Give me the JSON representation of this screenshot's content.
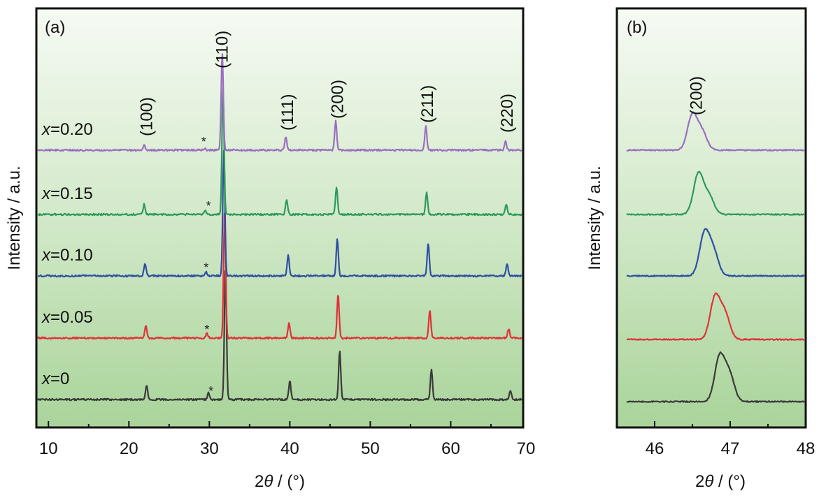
{
  "chart_data": [
    {
      "panel": "(a)",
      "type": "line",
      "xlabel_prefix": "2",
      "xlabel_symbol": "θ",
      "xlabel_suffix": " / (°)",
      "ylabel": "Intensity / a.u.",
      "xlim": [
        8.5,
        69
      ],
      "xticks": [
        10,
        20,
        30,
        40,
        50,
        60,
        70
      ],
      "peak_labels": [
        {
          "text": "(100)",
          "x": 22.2
        },
        {
          "text": "(110)",
          "x": 31.6
        },
        {
          "text": "(111)",
          "x": 39.7
        },
        {
          "text": "(200)",
          "x": 45.9
        },
        {
          "text": "(211)",
          "x": 57.1
        },
        {
          "text": "(220)",
          "x": 67.0
        }
      ],
      "series": [
        {
          "name": "x=0",
          "var": "x",
          "eq": "=0",
          "color": "#3a3a3a",
          "peaks": [
            [
              22.2,
              0.11
            ],
            [
              29.9,
              0.05
            ],
            [
              32.0,
              1.0
            ],
            [
              40.0,
              0.14
            ],
            [
              46.2,
              0.37
            ],
            [
              57.6,
              0.23
            ],
            [
              67.4,
              0.07
            ]
          ],
          "star_x": 30.2
        },
        {
          "name": "x=0.05",
          "var": "x",
          "eq": "=0.05",
          "color": "#e0323a",
          "peaks": [
            [
              22.1,
              0.1
            ],
            [
              29.7,
              0.04
            ],
            [
              31.9,
              1.0
            ],
            [
              39.9,
              0.12
            ],
            [
              46.0,
              0.35
            ],
            [
              57.4,
              0.22
            ],
            [
              67.2,
              0.07
            ]
          ],
          "star_x": 29.7
        },
        {
          "name": "x=0.10",
          "var": "x",
          "eq": "=0.10",
          "color": "#2f4fa5",
          "peaks": [
            [
              22.0,
              0.1
            ],
            [
              29.6,
              0.03
            ],
            [
              31.8,
              1.0
            ],
            [
              39.8,
              0.17
            ],
            [
              45.9,
              0.3
            ],
            [
              57.2,
              0.26
            ],
            [
              67.0,
              0.1
            ]
          ],
          "star_x": 29.6
        },
        {
          "name": "x=0.15",
          "var": "x",
          "eq": "=0.15",
          "color": "#2f9a5a",
          "peaks": [
            [
              21.9,
              0.08
            ],
            [
              29.5,
              0.03
            ],
            [
              31.7,
              1.0
            ],
            [
              39.6,
              0.12
            ],
            [
              45.8,
              0.22
            ],
            [
              57.0,
              0.18
            ],
            [
              66.9,
              0.08
            ]
          ],
          "star_x": 29.9
        },
        {
          "name": "x=0.20",
          "var": "x",
          "eq": "=0.20",
          "color": "#9a6fc0",
          "peaks": [
            [
              21.9,
              0.05
            ],
            [
              29.4,
              0.02
            ],
            [
              31.6,
              1.0
            ],
            [
              39.5,
              0.13
            ],
            [
              45.7,
              0.3
            ],
            [
              56.9,
              0.25
            ],
            [
              66.8,
              0.09
            ]
          ],
          "star_x": 29.3
        }
      ]
    },
    {
      "panel": "(b)",
      "type": "line",
      "xlabel_prefix": "2",
      "xlabel_symbol": "θ",
      "xlabel_suffix": " / (°)",
      "ylabel": "Intensity / a.u.",
      "xlim": [
        45.5,
        48
      ],
      "xticks": [
        46,
        47,
        48
      ],
      "peak_label": {
        "text": "(200)",
        "x": 46.55
      },
      "series": [
        {
          "name": "x=0",
          "color": "#3a3a3a",
          "peaks": [
            [
              46.86,
              1.0
            ],
            [
              46.99,
              0.6
            ]
          ]
        },
        {
          "name": "x=0.05",
          "color": "#e0323a",
          "peaks": [
            [
              46.8,
              1.0
            ],
            [
              46.93,
              0.6
            ]
          ]
        },
        {
          "name": "x=0.10",
          "color": "#2f4fa5",
          "peaks": [
            [
              46.66,
              1.0
            ],
            [
              46.78,
              0.55
            ]
          ]
        },
        {
          "name": "x=0.15",
          "color": "#2f9a5a",
          "peaks": [
            [
              46.58,
              1.0
            ],
            [
              46.72,
              0.45
            ]
          ]
        },
        {
          "name": "x=0.20",
          "color": "#9a6fc0",
          "peaks": [
            [
              46.5,
              1.0
            ],
            [
              46.63,
              0.5
            ]
          ]
        }
      ]
    }
  ]
}
